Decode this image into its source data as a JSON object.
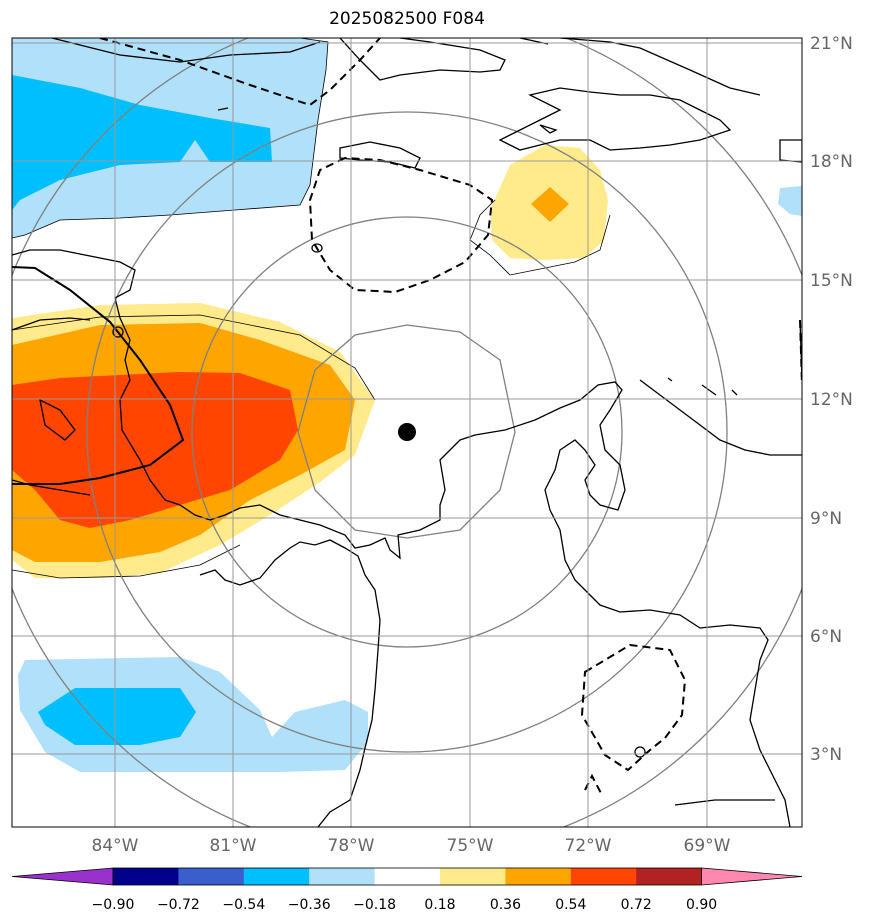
{
  "title": "2025082500 F084",
  "longitude_labels": [
    "84°W",
    "81°W",
    "78°W",
    "75°W",
    "72°W",
    "69°W"
  ],
  "latitude_labels": [
    "21°N",
    "18°N",
    "15°N",
    "12°N",
    "9°N",
    "6°N",
    "3°N"
  ],
  "colorbar": {
    "levels": [
      "−0.90",
      "−0.72",
      "−0.54",
      "−0.36",
      "−0.18",
      "0.18",
      "0.36",
      "0.54",
      "0.72",
      "0.90"
    ],
    "colors": [
      "#9932cc",
      "#00008b",
      "#3a5fcd",
      "#00bfff",
      "#b0e0fa",
      "#ffffff",
      "#ffea8c",
      "#ffa500",
      "#ff4500",
      "#b22222",
      "#ff88b0"
    ]
  },
  "center_marker": {
    "lon": "76.5°W",
    "lat": "11.0°N"
  }
}
